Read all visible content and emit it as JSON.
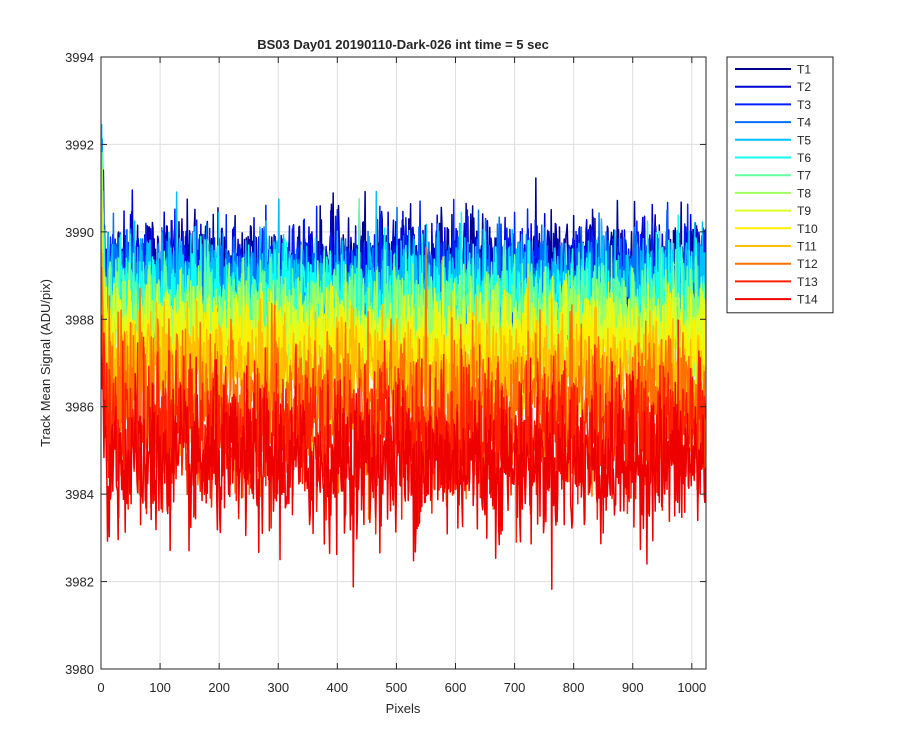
{
  "chart_data": {
    "type": "line",
    "title": "BS03 Day01 20190110-Dark-026 int time = 5 sec",
    "xlabel": "Pixels",
    "ylabel": "Track Mean Signal (ADU/pix)",
    "xlim": [
      0,
      1024
    ],
    "ylim": [
      3980,
      3994
    ],
    "xticks": [
      0,
      100,
      200,
      300,
      400,
      500,
      600,
      700,
      800,
      900,
      1000
    ],
    "yticks": [
      3980,
      3982,
      3984,
      3986,
      3988,
      3990,
      3992,
      3994
    ],
    "grid": true,
    "legend_position": "outside-top-right",
    "x_points": 1024,
    "series": [
      {
        "name": "T1",
        "color": "#00008F",
        "mean": 3989.2,
        "noise_sd": 0.62
      },
      {
        "name": "T2",
        "color": "#0000D6",
        "mean": 3989.0,
        "noise_sd": 0.62
      },
      {
        "name": "T3",
        "color": "#0020FF",
        "mean": 3988.9,
        "noise_sd": 0.62
      },
      {
        "name": "T4",
        "color": "#0070FF",
        "mean": 3988.8,
        "noise_sd": 0.62
      },
      {
        "name": "T5",
        "color": "#00BFFF",
        "mean": 3988.7,
        "noise_sd": 0.62
      },
      {
        "name": "T6",
        "color": "#10FFEF",
        "mean": 3988.4,
        "noise_sd": 0.62
      },
      {
        "name": "T7",
        "color": "#60FF9F",
        "mean": 3988.1,
        "noise_sd": 0.62
      },
      {
        "name": "T8",
        "color": "#9FFF60",
        "mean": 3987.8,
        "noise_sd": 0.62
      },
      {
        "name": "T9",
        "color": "#DFFF20",
        "mean": 3987.5,
        "noise_sd": 0.62
      },
      {
        "name": "T10",
        "color": "#FFEF00",
        "mean": 3987.2,
        "noise_sd": 0.62
      },
      {
        "name": "T11",
        "color": "#FFBF00",
        "mean": 3986.8,
        "noise_sd": 0.65
      },
      {
        "name": "T12",
        "color": "#FF7000",
        "mean": 3986.0,
        "noise_sd": 0.85
      },
      {
        "name": "T13",
        "color": "#FF2000",
        "mean": 3985.4,
        "noise_sd": 0.85
      },
      {
        "name": "T14",
        "color": "#EF0000",
        "mean": 3984.7,
        "noise_sd": 0.85
      }
    ]
  }
}
